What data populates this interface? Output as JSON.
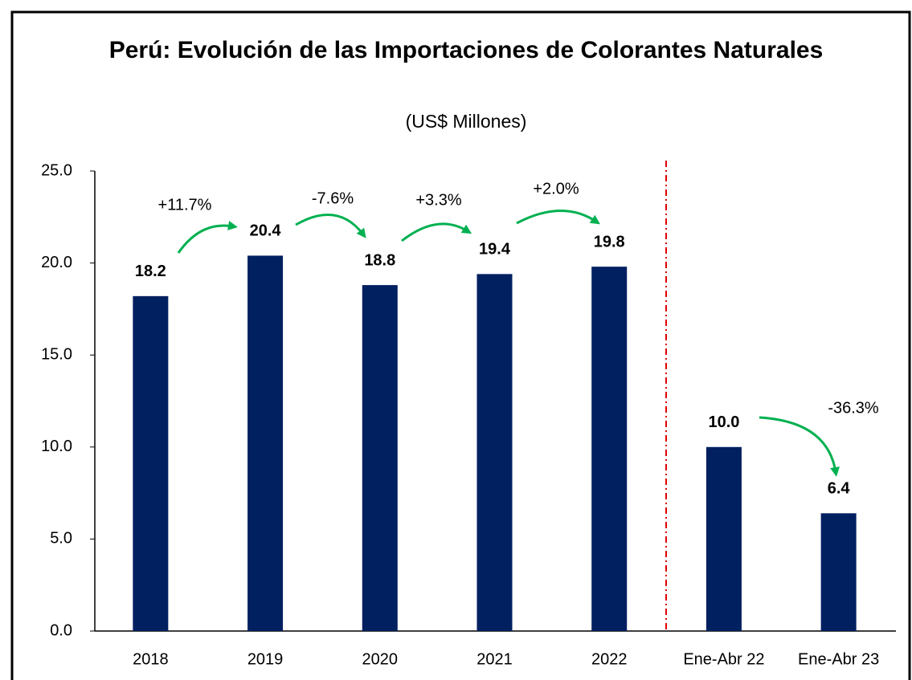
{
  "chart_data": {
    "type": "bar",
    "title": "Perú: Evolución de las Importaciones de Colorantes Naturales",
    "subtitle": "(US$ Millones)",
    "categories": [
      "2018",
      "2019",
      "2020",
      "2021",
      "2022",
      "Ene-Abr 22",
      "Ene-Abr 23"
    ],
    "values": [
      18.2,
      20.4,
      18.8,
      19.4,
      19.8,
      10.0,
      6.4
    ],
    "value_labels": [
      "18.2",
      "20.4",
      "18.8",
      "19.4",
      "19.8",
      "10.0",
      "6.4"
    ],
    "color": "#002060",
    "ylim": [
      0,
      25
    ],
    "yticks": [
      {
        "value": 0,
        "label": "0.0"
      },
      {
        "value": 5,
        "label": "5.0"
      },
      {
        "value": 10,
        "label": "10.0"
      },
      {
        "value": 15,
        "label": "15.0"
      },
      {
        "value": 20,
        "label": "20.0"
      },
      {
        "value": 25,
        "label": "25.0"
      }
    ],
    "grid": false,
    "annotations": [
      "+11.7%",
      "-7.6%",
      "+3.3%",
      "+2.0%",
      "-36.3%"
    ]
  }
}
